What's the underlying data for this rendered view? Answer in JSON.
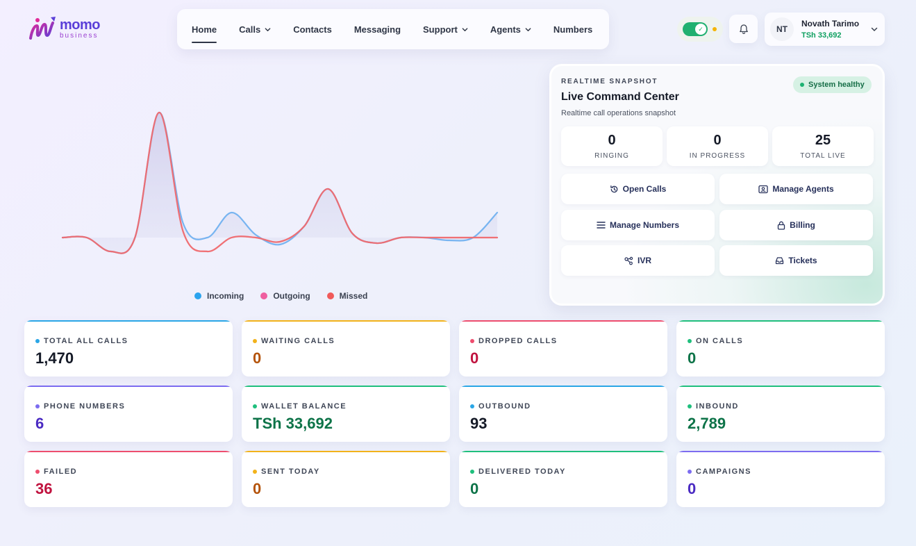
{
  "brand": {
    "word": "momo",
    "sub": "business"
  },
  "nav": {
    "items": [
      {
        "label": "Home",
        "dropdown": false,
        "active": true
      },
      {
        "label": "Calls",
        "dropdown": true
      },
      {
        "label": "Contacts",
        "dropdown": false
      },
      {
        "label": "Messaging",
        "dropdown": false
      },
      {
        "label": "Support",
        "dropdown": true
      },
      {
        "label": "Agents",
        "dropdown": true
      },
      {
        "label": "Numbers",
        "dropdown": false
      }
    ]
  },
  "header": {
    "toggle_on": true,
    "user": {
      "initials": "NT",
      "name": "Novath Tarimo",
      "balance": "TSh 33,692"
    }
  },
  "chart_data": {
    "type": "area",
    "series": [
      {
        "name": "Incoming",
        "color": "#6aaef0",
        "values": [
          0,
          0,
          -1,
          0,
          9,
          1,
          0,
          1.8,
          0.2,
          -0.5,
          0.8,
          3.5,
          0.3,
          -0.4,
          0,
          0,
          -0.2,
          0,
          1.8
        ]
      },
      {
        "name": "Outgoing",
        "color": "#ef6fa3",
        "values": [
          0,
          0,
          -1,
          0,
          9,
          0.4,
          -1,
          0,
          0,
          -0.3,
          0.8,
          3.5,
          0.3,
          -0.4,
          0,
          0,
          0,
          0,
          0
        ]
      },
      {
        "name": "Missed",
        "color": "#f06a6a",
        "values": [
          0,
          0,
          -1,
          0,
          9,
          0.4,
          -1,
          0,
          0,
          -0.3,
          0.8,
          3.5,
          0.3,
          -0.4,
          0,
          0,
          0,
          0,
          0
        ]
      }
    ],
    "legend": "bottom-center",
    "grid": false
  },
  "command_center": {
    "eyebrow": "REALTIME SNAPSHOT",
    "title": "Live Command Center",
    "subtitle": "Realtime call operations snapshot",
    "badge": "System healthy",
    "stats": [
      {
        "value": "0",
        "label": "RINGING"
      },
      {
        "value": "0",
        "label": "IN PROGRESS"
      },
      {
        "value": "25",
        "label": "TOTAL LIVE"
      }
    ],
    "actions": [
      {
        "label": "Open Calls",
        "icon": "history-icon"
      },
      {
        "label": "Manage Agents",
        "icon": "id-card-icon"
      },
      {
        "label": "Manage Numbers",
        "icon": "list-icon"
      },
      {
        "label": "Billing",
        "icon": "lock-icon"
      },
      {
        "label": "IVR",
        "icon": "nodes-icon"
      },
      {
        "label": "Tickets",
        "icon": "inbox-icon"
      }
    ]
  },
  "metrics": [
    {
      "label": "TOTAL ALL CALLS",
      "value": "1,470",
      "accent": "#2aa6e6",
      "value_color": "#151a27"
    },
    {
      "label": "WAITING CALLS",
      "value": "0",
      "accent": "#f2b21a",
      "value_color": "#b4530a"
    },
    {
      "label": "DROPPED CALLS",
      "value": "0",
      "accent": "#ee4d6e",
      "value_color": "#c0133f"
    },
    {
      "label": "ON CALLS",
      "value": "0",
      "accent": "#1fbf7d",
      "value_color": "#0d7348"
    },
    {
      "label": "PHONE NUMBERS",
      "value": "6",
      "accent": "#7c6cf0",
      "value_color": "#4a2ac2"
    },
    {
      "label": "WALLET BALANCE",
      "value": "TSh 33,692",
      "accent": "#1fbf7d",
      "value_color": "#0d7348"
    },
    {
      "label": "OUTBOUND",
      "value": "93",
      "accent": "#2aa6e6",
      "value_color": "#151a27"
    },
    {
      "label": "INBOUND",
      "value": "2,789",
      "accent": "#1fbf7d",
      "value_color": "#0d7348"
    },
    {
      "label": "FAILED",
      "value": "36",
      "accent": "#ee4d6e",
      "value_color": "#c0133f"
    },
    {
      "label": "SENT TODAY",
      "value": "0",
      "accent": "#f2b21a",
      "value_color": "#b4530a"
    },
    {
      "label": "DELIVERED TODAY",
      "value": "0",
      "accent": "#1fbf7d",
      "value_color": "#0d7348"
    },
    {
      "label": "CAMPAIGNS",
      "value": "0",
      "accent": "#7c6cf0",
      "value_color": "#4a2ac2"
    }
  ]
}
